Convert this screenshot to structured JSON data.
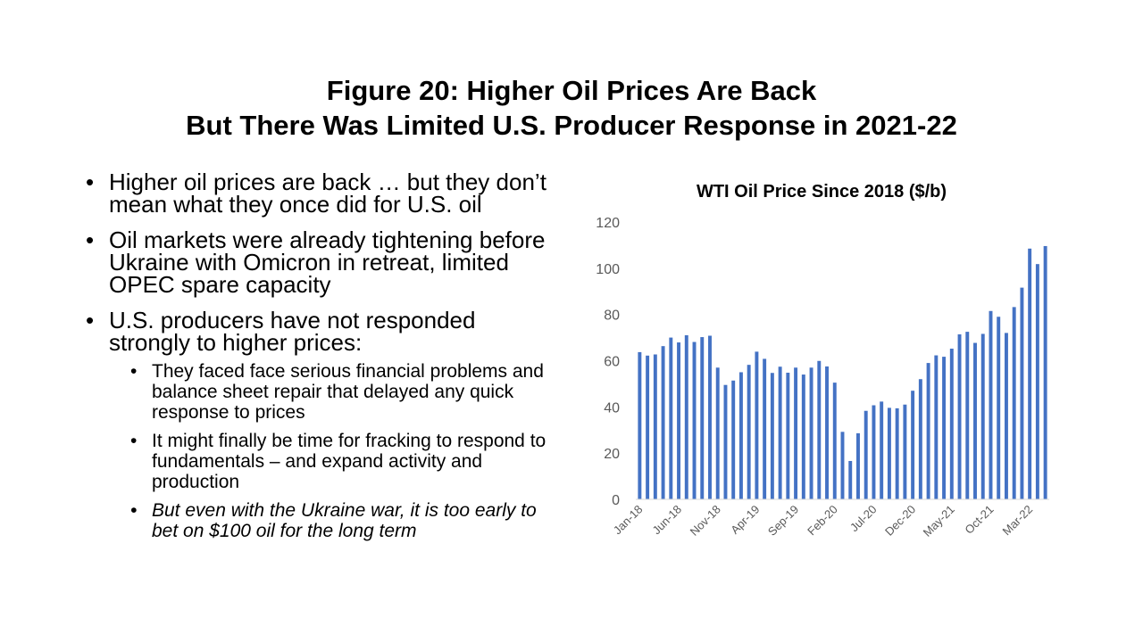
{
  "slide": {
    "title_line1": "Figure 20: Higher Oil Prices Are Back",
    "title_line2": "But There Was Limited U.S. Producer Response in 2021-22"
  },
  "bullets": {
    "b1": "Higher oil prices are back … but they don’t mean what they once did for U.S. oil",
    "b2": "Oil markets were already tightening before Ukraine with Omicron in retreat, limited OPEC spare capacity",
    "b3": "U.S. producers have not responded strongly to higher prices:",
    "b3_sub": [
      "They faced face serious financial problems and balance sheet repair that delayed any quick response to prices",
      "It might finally be time for fracking to respond to fundamentals – and expand activity and production",
      "But even with the Ukraine war, it is too early to bet on $100 oil for the long term"
    ]
  },
  "chart_data": {
    "type": "bar",
    "title": "WTI Oil Price Since 2018 ($/b)",
    "xlabel": "",
    "ylabel": "",
    "ylim": [
      0,
      120
    ],
    "yticks": [
      0,
      20,
      40,
      60,
      80,
      100,
      120
    ],
    "grid": false,
    "legend": "none",
    "bar_color": "#4472C4",
    "x_tick_labels": [
      "Jan-18",
      "Jun-18",
      "Nov-18",
      "Apr-19",
      "Sep-19",
      "Feb-20",
      "Jul-20",
      "Dec-20",
      "May-21",
      "Oct-21",
      "Mar-22"
    ],
    "categories": [
      "Jan-18",
      "Feb-18",
      "Mar-18",
      "Apr-18",
      "May-18",
      "Jun-18",
      "Jul-18",
      "Aug-18",
      "Sep-18",
      "Oct-18",
      "Nov-18",
      "Dec-18",
      "Jan-19",
      "Feb-19",
      "Mar-19",
      "Apr-19",
      "May-19",
      "Jun-19",
      "Jul-19",
      "Aug-19",
      "Sep-19",
      "Oct-19",
      "Nov-19",
      "Dec-19",
      "Jan-20",
      "Feb-20",
      "Mar-20",
      "Apr-20",
      "May-20",
      "Jun-20",
      "Jul-20",
      "Aug-20",
      "Sep-20",
      "Oct-20",
      "Nov-20",
      "Dec-20",
      "Jan-21",
      "Feb-21",
      "Mar-21",
      "Apr-21",
      "May-21",
      "Jun-21",
      "Jul-21",
      "Aug-21",
      "Sep-21",
      "Oct-21",
      "Nov-21",
      "Dec-21",
      "Jan-22",
      "Feb-22",
      "Mar-22",
      "Apr-22",
      "May-22"
    ],
    "values": [
      63.7,
      62.2,
      62.7,
      66.3,
      70.0,
      67.9,
      71.0,
      68.1,
      70.2,
      70.8,
      57.0,
      49.5,
      51.4,
      55.0,
      58.2,
      63.9,
      60.8,
      54.7,
      57.4,
      54.8,
      57.0,
      54.0,
      57.0,
      59.9,
      57.5,
      50.5,
      29.2,
      16.6,
      28.6,
      38.3,
      40.7,
      42.3,
      39.6,
      39.4,
      41.0,
      47.0,
      52.0,
      59.0,
      62.3,
      61.7,
      65.2,
      71.4,
      72.5,
      67.7,
      71.6,
      81.5,
      79.0,
      72.0,
      83.2,
      91.6,
      108.5,
      101.8,
      109.6
    ]
  }
}
